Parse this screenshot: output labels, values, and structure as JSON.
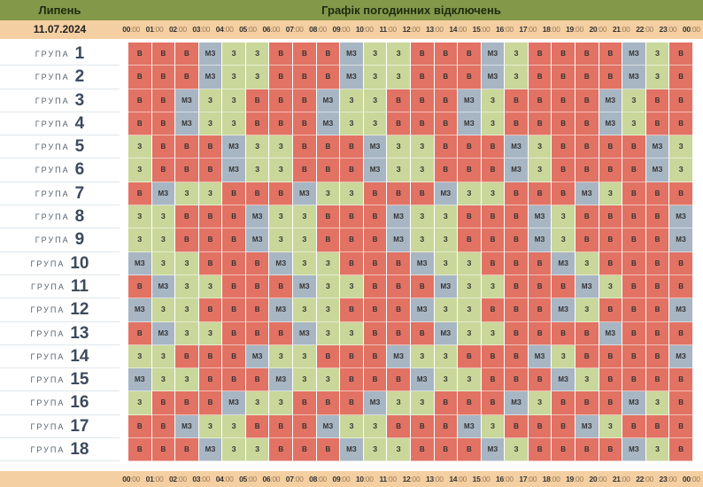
{
  "header": {
    "month": "Липень",
    "title": "Графік погодинних відключень",
    "date": "11.07.2024"
  },
  "hours": [
    "00:00",
    "01:00",
    "02:00",
    "03:00",
    "04:00",
    "05:00",
    "06:00",
    "07:00",
    "08:00",
    "09:00",
    "10:00",
    "11:00",
    "12:00",
    "13:00",
    "14:00",
    "15:00",
    "16:00",
    "17:00",
    "18:00",
    "19:00",
    "20:00",
    "21:00",
    "22:00",
    "23:00",
    "00:00"
  ],
  "group_word": "ГРУПА",
  "legend_codes": {
    "В": "v",
    "З": "z",
    "МЗ": "mz"
  },
  "colors": {
    "В": "#e27263",
    "З": "#c9d79a",
    "МЗ": "#a8b6c4",
    "header": "#84984a",
    "date_bar": "#f4cfa2"
  },
  "groups": [
    {
      "num": "1",
      "cells": [
        "В",
        "В",
        "В",
        "МЗ",
        "З",
        "З",
        "В",
        "В",
        "В",
        "МЗ",
        "З",
        "З",
        "В",
        "В",
        "В",
        "МЗ",
        "З",
        "В",
        "В",
        "В",
        "В",
        "МЗ",
        "З",
        "В"
      ]
    },
    {
      "num": "2",
      "cells": [
        "В",
        "В",
        "В",
        "МЗ",
        "З",
        "З",
        "В",
        "В",
        "В",
        "МЗ",
        "З",
        "З",
        "В",
        "В",
        "В",
        "МЗ",
        "З",
        "В",
        "В",
        "В",
        "В",
        "МЗ",
        "З",
        "В"
      ]
    },
    {
      "num": "3",
      "cells": [
        "В",
        "В",
        "МЗ",
        "З",
        "З",
        "В",
        "В",
        "В",
        "МЗ",
        "З",
        "З",
        "В",
        "В",
        "В",
        "МЗ",
        "З",
        "В",
        "В",
        "В",
        "В",
        "МЗ",
        "З",
        "В",
        "В"
      ]
    },
    {
      "num": "4",
      "cells": [
        "В",
        "В",
        "МЗ",
        "З",
        "З",
        "В",
        "В",
        "В",
        "МЗ",
        "З",
        "З",
        "В",
        "В",
        "В",
        "МЗ",
        "З",
        "В",
        "В",
        "В",
        "В",
        "МЗ",
        "З",
        "В",
        "В"
      ]
    },
    {
      "num": "5",
      "cells": [
        "З",
        "В",
        "В",
        "В",
        "МЗ",
        "З",
        "З",
        "В",
        "В",
        "В",
        "МЗ",
        "З",
        "З",
        "В",
        "В",
        "В",
        "МЗ",
        "З",
        "В",
        "В",
        "В",
        "В",
        "МЗ",
        "З"
      ]
    },
    {
      "num": "6",
      "cells": [
        "З",
        "В",
        "В",
        "В",
        "МЗ",
        "З",
        "З",
        "В",
        "В",
        "В",
        "МЗ",
        "З",
        "З",
        "В",
        "В",
        "В",
        "МЗ",
        "З",
        "В",
        "В",
        "В",
        "В",
        "МЗ",
        "З"
      ]
    },
    {
      "num": "7",
      "cells": [
        "В",
        "МЗ",
        "З",
        "З",
        "В",
        "В",
        "В",
        "МЗ",
        "З",
        "З",
        "В",
        "В",
        "В",
        "МЗ",
        "З",
        "З",
        "В",
        "В",
        "В",
        "МЗ",
        "З",
        "В",
        "В",
        "В"
      ]
    },
    {
      "num": "8",
      "cells": [
        "З",
        "З",
        "В",
        "В",
        "В",
        "МЗ",
        "З",
        "З",
        "В",
        "В",
        "В",
        "МЗ",
        "З",
        "З",
        "В",
        "В",
        "В",
        "МЗ",
        "З",
        "В",
        "В",
        "В",
        "В",
        "МЗ"
      ]
    },
    {
      "num": "9",
      "cells": [
        "З",
        "З",
        "В",
        "В",
        "В",
        "МЗ",
        "З",
        "З",
        "В",
        "В",
        "В",
        "МЗ",
        "З",
        "З",
        "В",
        "В",
        "В",
        "МЗ",
        "З",
        "В",
        "В",
        "В",
        "В",
        "МЗ"
      ]
    },
    {
      "num": "10",
      "cells": [
        "МЗ",
        "З",
        "З",
        "В",
        "В",
        "В",
        "МЗ",
        "З",
        "З",
        "В",
        "В",
        "В",
        "МЗ",
        "З",
        "З",
        "В",
        "В",
        "В",
        "МЗ",
        "З",
        "В",
        "В",
        "В",
        "В"
      ]
    },
    {
      "num": "11",
      "cells": [
        "В",
        "МЗ",
        "З",
        "З",
        "В",
        "В",
        "В",
        "МЗ",
        "З",
        "З",
        "В",
        "В",
        "В",
        "МЗ",
        "З",
        "З",
        "В",
        "В",
        "В",
        "МЗ",
        "З",
        "В",
        "В",
        "В"
      ]
    },
    {
      "num": "12",
      "cells": [
        "МЗ",
        "З",
        "З",
        "В",
        "В",
        "В",
        "МЗ",
        "З",
        "З",
        "В",
        "В",
        "В",
        "МЗ",
        "З",
        "З",
        "В",
        "В",
        "В",
        "МЗ",
        "З",
        "В",
        "В",
        "В",
        "МЗ"
      ]
    },
    {
      "num": "13",
      "cells": [
        "В",
        "МЗ",
        "З",
        "З",
        "В",
        "В",
        "В",
        "МЗ",
        "З",
        "З",
        "В",
        "В",
        "В",
        "МЗ",
        "З",
        "З",
        "В",
        "В",
        "В",
        "В",
        "МЗ",
        "В",
        "В",
        "В"
      ]
    },
    {
      "num": "14",
      "cells": [
        "З",
        "З",
        "В",
        "В",
        "В",
        "МЗ",
        "З",
        "З",
        "В",
        "В",
        "В",
        "МЗ",
        "З",
        "З",
        "В",
        "В",
        "В",
        "МЗ",
        "З",
        "В",
        "В",
        "В",
        "В",
        "МЗ"
      ]
    },
    {
      "num": "15",
      "cells": [
        "МЗ",
        "З",
        "З",
        "В",
        "В",
        "В",
        "МЗ",
        "З",
        "З",
        "В",
        "В",
        "В",
        "МЗ",
        "З",
        "З",
        "В",
        "В",
        "В",
        "МЗ",
        "З",
        "В",
        "В",
        "В",
        "В"
      ]
    },
    {
      "num": "16",
      "cells": [
        "З",
        "В",
        "В",
        "В",
        "МЗ",
        "З",
        "З",
        "В",
        "В",
        "В",
        "МЗ",
        "З",
        "З",
        "В",
        "В",
        "В",
        "МЗ",
        "З",
        "В",
        "В",
        "В",
        "МЗ",
        "З",
        "В"
      ]
    },
    {
      "num": "17",
      "cells": [
        "В",
        "В",
        "МЗ",
        "З",
        "З",
        "В",
        "В",
        "В",
        "МЗ",
        "З",
        "З",
        "В",
        "В",
        "В",
        "МЗ",
        "З",
        "В",
        "В",
        "В",
        "МЗ",
        "З",
        "В",
        "В",
        "В"
      ]
    },
    {
      "num": "18",
      "cells": [
        "В",
        "В",
        "В",
        "МЗ",
        "З",
        "З",
        "В",
        "В",
        "В",
        "МЗ",
        "З",
        "З",
        "В",
        "В",
        "В",
        "МЗ",
        "З",
        "В",
        "В",
        "В",
        "В",
        "МЗ",
        "З",
        "В"
      ]
    }
  ]
}
